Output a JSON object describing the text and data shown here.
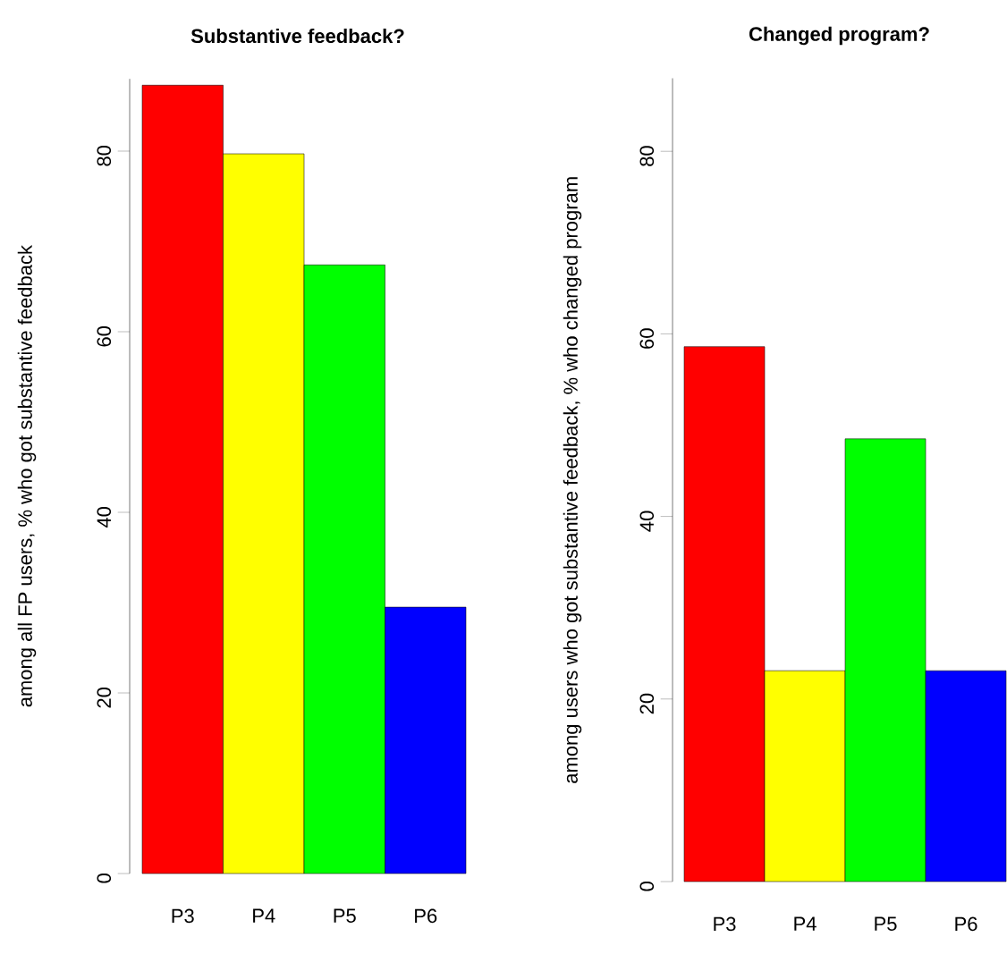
{
  "chart_data": [
    {
      "type": "bar",
      "title": "Substantive feedback?",
      "ylabel": "among all FP users, % who got substantive feedback",
      "categories": [
        "P3",
        "P4",
        "P5",
        "P6"
      ],
      "values": [
        87.3,
        79.7,
        67.4,
        29.5
      ],
      "colors": [
        "#ff0000",
        "#ffff00",
        "#00ff00",
        "#0000ff"
      ],
      "ylim": [
        0,
        88
      ],
      "yticks": [
        0,
        20,
        40,
        60,
        80
      ]
    },
    {
      "type": "bar",
      "title": "Changed program?",
      "ylabel": "among users who got substantive feedback, % who changed program",
      "categories": [
        "P3",
        "P4",
        "P5",
        "P6"
      ],
      "values": [
        58.6,
        23.1,
        48.5,
        23.1
      ],
      "colors": [
        "#ff0000",
        "#ffff00",
        "#00ff00",
        "#0000ff"
      ],
      "ylim": [
        0,
        88
      ],
      "yticks": [
        0,
        20,
        40,
        60,
        80
      ]
    }
  ]
}
